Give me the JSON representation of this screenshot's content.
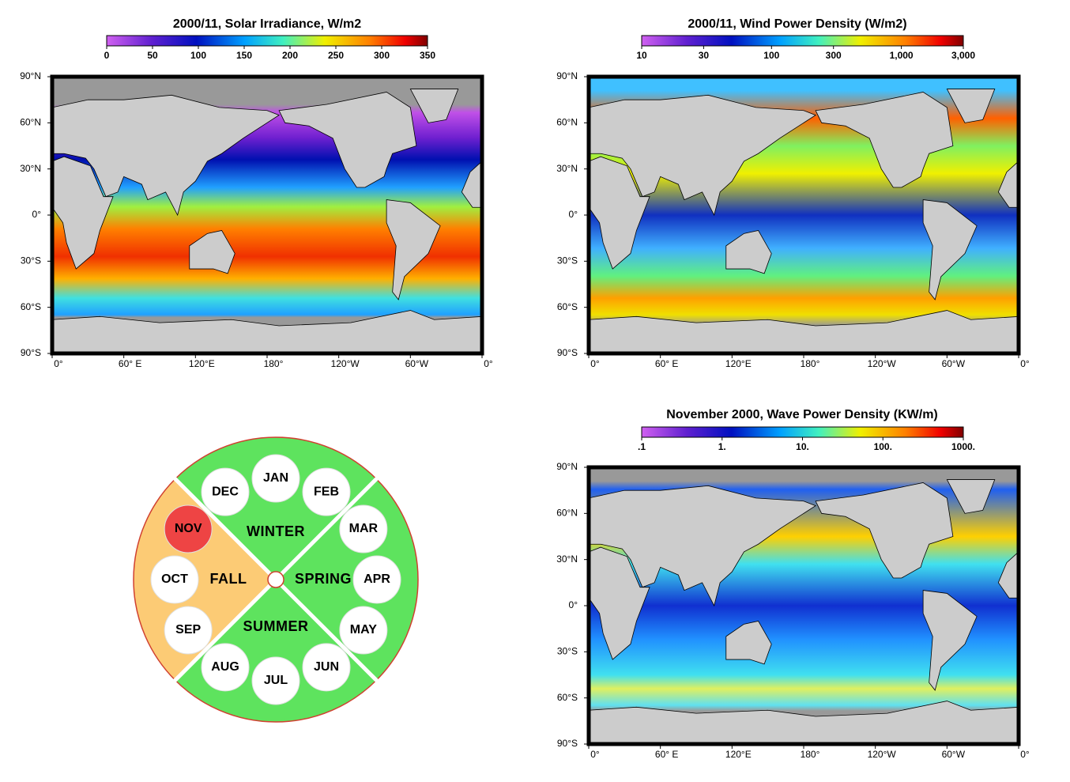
{
  "maps": [
    {
      "title": "2000/11, Solar Irradiance, W/m2",
      "colorbar": {
        "scale": "linear",
        "lim": [
          0,
          350
        ],
        "ticks": [
          0,
          50,
          100,
          150,
          200,
          250,
          300,
          350
        ]
      }
    },
    {
      "title": "2000/11, Wind Power Density (W/m2)",
      "colorbar": {
        "scale": "log",
        "lim": [
          10,
          3000
        ],
        "ticks": [
          10,
          30,
          100,
          300,
          {
            "value": 1000,
            "label": "1,000"
          },
          {
            "value": 3000,
            "label": "3,000"
          }
        ]
      }
    },
    {
      "title": "November 2000, Wave Power Density (KW/m)",
      "colorbar": {
        "scale": "log",
        "lim": [
          0.1,
          1000
        ],
        "ticks": [
          {
            "value": 0.1,
            "label": ".1"
          },
          {
            "value": 1,
            "label": "1."
          },
          {
            "value": 10,
            "label": "10."
          },
          {
            "value": 100,
            "label": "100."
          },
          {
            "value": 1000,
            "label": "1000."
          }
        ]
      }
    }
  ],
  "lat_labels": [
    "90°N",
    "60°N",
    "30°N",
    "0°",
    "30°S",
    "60°S",
    "90°S"
  ],
  "lon_labels": [
    "0°",
    "60° E",
    "120°E",
    "180°",
    "120°W",
    "60°W",
    "0°"
  ],
  "wheel": {
    "seasons": [
      "WINTER",
      "SPRING",
      "SUMMER",
      "FALL"
    ],
    "months": [
      "JAN",
      "FEB",
      "MAR",
      "APR",
      "MAY",
      "JUN",
      "JUL",
      "AUG",
      "SEP",
      "OCT",
      "NOV",
      "DEC"
    ],
    "highlight_season": 3,
    "highlight_month": 10
  }
}
